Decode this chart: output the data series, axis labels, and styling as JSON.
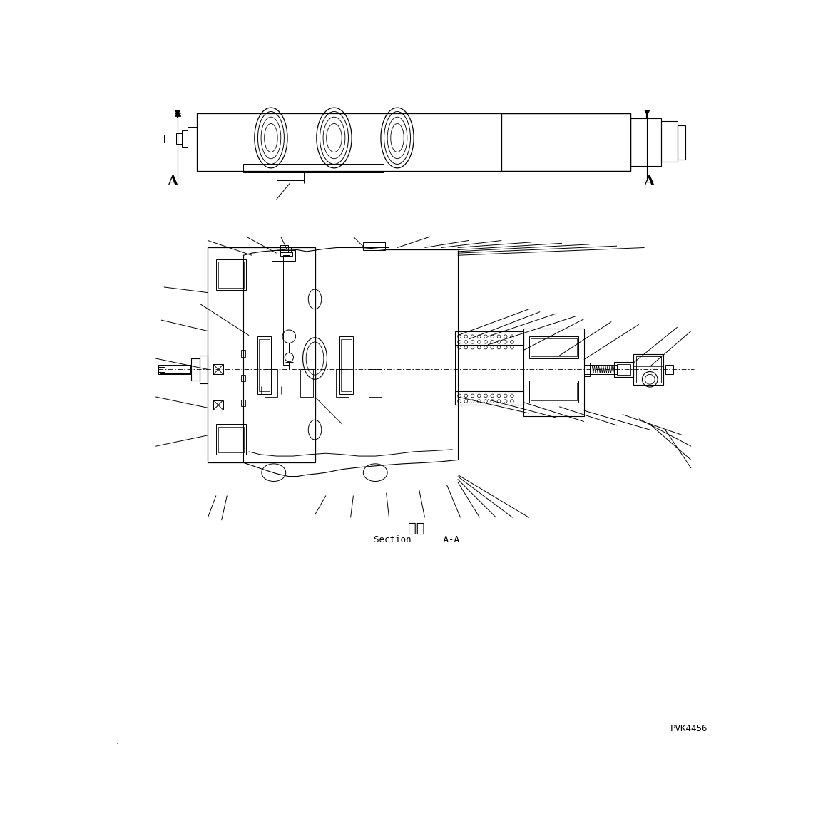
{
  "background_color": "#ffffff",
  "line_color": "#000000",
  "fig_width": 11.68,
  "fig_height": 11.76,
  "dpi": 100,
  "section_label_japanese": "断面",
  "section_label_english": "Section      A-A",
  "ref_number": "PVK4456"
}
